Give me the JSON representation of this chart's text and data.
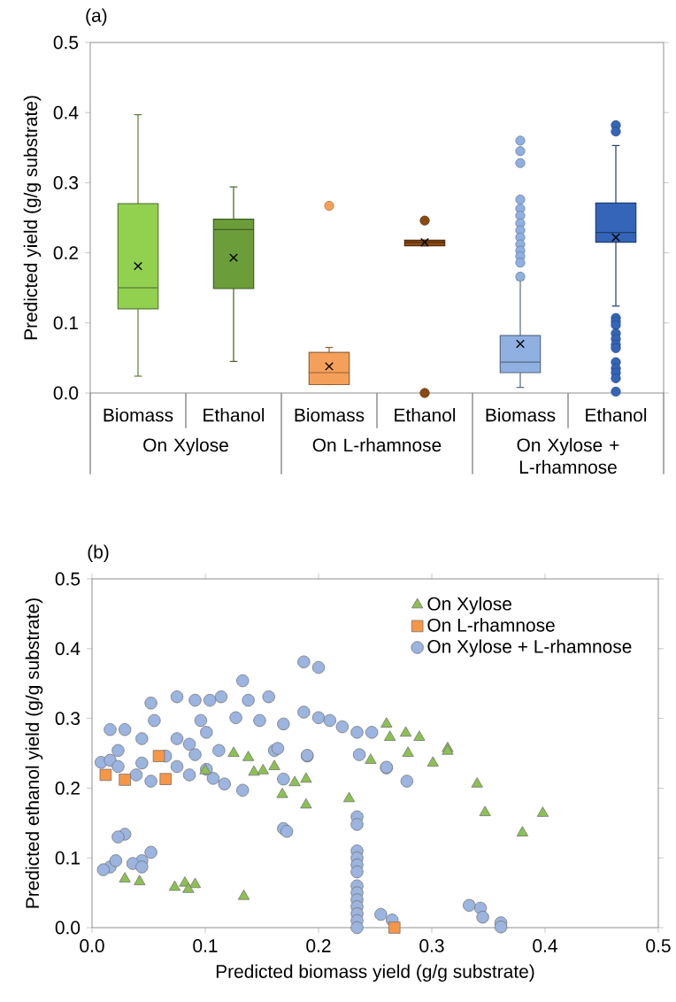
{
  "chart_data": [
    {
      "type": "box",
      "title": "(a)",
      "ylabel": "Predicted yield (g/g substrate)",
      "categories": [
        "Biomass",
        "Ethanol",
        "Biomass",
        "Ethanol",
        "Biomass",
        "Ethanol"
      ],
      "colors": [
        "#92d050",
        "#6b9e3a",
        "#f5a05a",
        "#8a4a14",
        "#8fb0e0",
        "#3465b8"
      ],
      "boxes": [
        {
          "low": 0.024,
          "q1": 0.12,
          "median": 0.15,
          "q3": 0.27,
          "high": 0.397,
          "mean": 0.181
        },
        {
          "low": 0.045,
          "q1": 0.149,
          "median": 0.233,
          "q3": 0.248,
          "high": 0.294,
          "mean": 0.193
        },
        {
          "low": 0.012,
          "q1": 0.012,
          "median": 0.029,
          "q3": 0.058,
          "high": 0.065,
          "mean": 0.038,
          "outliers": [
            0.267
          ]
        },
        {
          "low": 0.21,
          "q1": 0.21,
          "median": 0.215,
          "q3": 0.218,
          "high": 0.218,
          "mean": 0.215,
          "outliers": [
            0.246,
            0.0
          ]
        },
        {
          "low": 0.008,
          "q1": 0.029,
          "median": 0.044,
          "q3": 0.082,
          "high": 0.161,
          "mean": 0.07,
          "outliers": [
            0.36,
            0.345,
            0.328,
            0.276,
            0.263,
            0.253,
            0.242,
            0.232,
            0.222,
            0.212,
            0.203,
            0.195,
            0.186,
            0.166
          ]
        },
        {
          "low": 0.124,
          "q1": 0.215,
          "median": 0.229,
          "q3": 0.271,
          "high": 0.353,
          "mean": 0.222,
          "outliers": [
            0.382,
            0.373,
            0.107,
            0.102,
            0.097,
            0.085,
            0.077,
            0.069,
            0.064,
            0.044,
            0.035,
            0.029,
            0.021,
            0.002
          ]
        }
      ],
      "ylim": [
        0,
        0.5
      ],
      "yticks": [
        {
          "value": 0,
          "label": "0.0"
        },
        0.1,
        0.2,
        0.3,
        0.4,
        0.5
      ],
      "annotations": [
        "On Xylose",
        "On L-rhamnose",
        "On Xylose + L-rhamnose"
      ]
    },
    {
      "type": "scatter",
      "title": "(b)",
      "xlabel": "Predicted biomass yield (g/g substrate)",
      "ylabel": "Predicted ethanol yield (g/g substrate)",
      "xlim": [
        0,
        0.5
      ],
      "ylim": [
        0,
        0.5
      ],
      "xticks": [
        {
          "value": 0,
          "label": "0.0"
        },
        0.1,
        0.2,
        0.3,
        0.4,
        0.5
      ],
      "yticks": [
        {
          "value": 0,
          "label": "0.0"
        },
        0.1,
        0.2,
        0.3,
        0.4,
        0.5
      ],
      "legend": "top right",
      "series": [
        {
          "name": "On Xylose",
          "color": "#8cc152",
          "marker": "triangle",
          "x": [
            0.029,
            0.042,
            0.073,
            0.082,
            0.091,
            0.085,
            0.134,
            0.168,
            0.189,
            0.189,
            0.179,
            0.227,
            0.301,
            0.34,
            0.347,
            0.398,
            0.38,
            0.1,
            0.125,
            0.138,
            0.161,
            0.143,
            0.151,
            0.246,
            0.279,
            0.314,
            0.26,
            0.263,
            0.277,
            0.289,
            0.314
          ],
          "values": [
            0.07,
            0.066,
            0.058,
            0.064,
            0.062,
            0.055,
            0.045,
            0.191,
            0.176,
            0.213,
            0.208,
            0.185,
            0.236,
            0.206,
            0.165,
            0.164,
            0.136,
            0.225,
            0.25,
            0.244,
            0.231,
            0.223,
            0.225,
            0.24,
            0.25,
            0.257,
            0.292,
            0.273,
            0.279,
            0.273,
            0.253
          ]
        },
        {
          "name": "On L-rhamnose",
          "color": "#f79646",
          "marker": "square",
          "x": [
            0.012,
            0.029,
            0.059,
            0.065,
            0.267
          ],
          "values": [
            0.219,
            0.212,
            0.246,
            0.213,
            0.0
          ]
        },
        {
          "name": "On Xylose + L-rhamnose",
          "color": "#9bb4e0",
          "marker": "circle",
          "x": [
            0.187,
            0.2,
            0.133,
            0.156,
            0.114,
            0.075,
            0.052,
            0.091,
            0.104,
            0.016,
            0.029,
            0.044,
            0.138,
            0.127,
            0.148,
            0.169,
            0.187,
            0.2,
            0.21,
            0.221,
            0.234,
            0.247,
            0.19,
            0.26,
            0.161,
            0.075,
            0.101,
            0.055,
            0.096,
            0.112,
            0.023,
            0.008,
            0.065,
            0.086,
            0.133,
            0.169,
            0.19,
            0.164,
            0.26,
            0.278,
            0.236,
            0.169,
            0.172,
            0.234,
            0.234,
            0.234,
            0.234,
            0.234,
            0.234,
            0.234,
            0.234,
            0.234,
            0.234,
            0.234,
            0.234,
            0.234,
            0.255,
            0.265,
            0.333,
            0.343,
            0.345,
            0.361,
            0.361,
            0.029,
            0.023,
            0.052,
            0.044,
            0.016,
            0.01,
            0.021,
            0.036,
            0.044,
            0.016,
            0.023,
            0.039,
            0.044,
            0.075,
            0.091,
            0.101,
            0.117,
            0.107,
            0.052,
            0.086
          ],
          "values": [
            0.381,
            0.373,
            0.354,
            0.331,
            0.331,
            0.331,
            0.322,
            0.326,
            0.326,
            0.284,
            0.284,
            0.271,
            0.326,
            0.301,
            0.297,
            0.292,
            0.309,
            0.301,
            0.297,
            0.288,
            0.28,
            0.28,
            0.246,
            0.229,
            0.254,
            0.271,
            0.28,
            0.297,
            0.297,
            0.254,
            0.254,
            0.237,
            0.246,
            0.263,
            0.197,
            0.213,
            0.247,
            0.257,
            0.23,
            0.21,
            0.248,
            0.142,
            0.138,
            0.159,
            0.148,
            0.11,
            0.1,
            0.09,
            0.08,
            0.06,
            0.05,
            0.04,
            0.03,
            0.02,
            0.01,
            0.0,
            0.019,
            0.011,
            0.032,
            0.028,
            0.015,
            0.007,
            0.001,
            0.134,
            0.13,
            0.108,
            0.096,
            0.087,
            0.083,
            0.096,
            0.092,
            0.087,
            0.24,
            0.231,
            0.219,
            0.236,
            0.231,
            0.248,
            0.227,
            0.206,
            0.214,
            0.21,
            0.219
          ]
        }
      ]
    }
  ]
}
